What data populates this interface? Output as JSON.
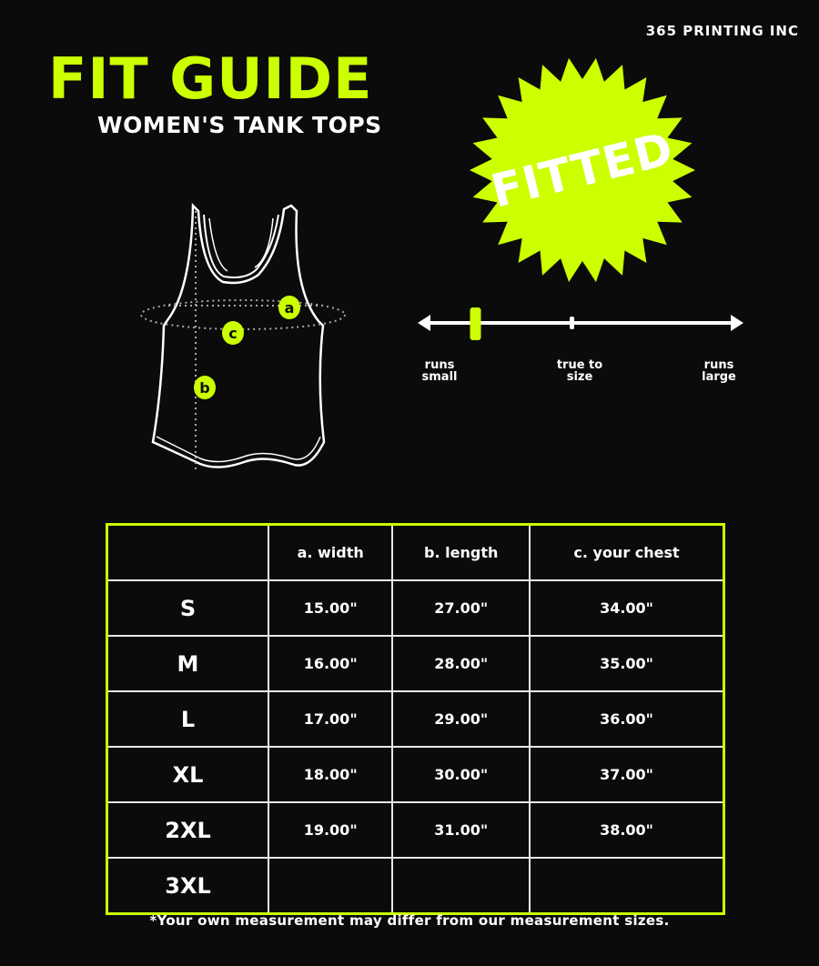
{
  "brand": "365 PRINTING INC",
  "title": "FIT GUIDE",
  "subtitle": "WOMEN'S TANK TOPS",
  "fit_badge": "FITTED",
  "colors": {
    "accent": "#ccff00",
    "background": "#0b0b0b",
    "text": "#ffffff"
  },
  "diagram": {
    "markers": [
      "a",
      "b",
      "c"
    ]
  },
  "fit_scale": {
    "labels": [
      {
        "line1": "runs",
        "line2": "small"
      },
      {
        "line1": "true to",
        "line2": "size"
      },
      {
        "line1": "runs",
        "line2": "large"
      }
    ],
    "position_percent": 17
  },
  "table": {
    "headers": [
      "",
      "a. width",
      "b. length",
      "c. your chest"
    ],
    "rows": [
      [
        "S",
        "15.00\"",
        "27.00\"",
        "34.00\""
      ],
      [
        "M",
        "16.00\"",
        "28.00\"",
        "35.00\""
      ],
      [
        "L",
        "17.00\"",
        "29.00\"",
        "36.00\""
      ],
      [
        "XL",
        "18.00\"",
        "30.00\"",
        "37.00\""
      ],
      [
        "2XL",
        "19.00\"",
        "31.00\"",
        "38.00\""
      ],
      [
        "3XL",
        "",
        "",
        ""
      ]
    ]
  },
  "footnote": "*Your own measurement may differ from our measurement sizes."
}
